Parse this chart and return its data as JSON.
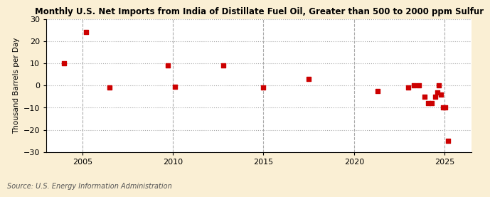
{
  "title": "Monthly U.S. Net Imports from India of Distillate Fuel Oil, Greater than 500 to 2000 ppm Sulfur",
  "ylabel": "Thousand Barrels per Day",
  "source": "Source: U.S. Energy Information Administration",
  "fig_bg_color": "#faefd4",
  "plot_bg_color": "#ffffff",
  "marker_color": "#cc0000",
  "marker_size": 4,
  "xlim": [
    2003.0,
    2026.5
  ],
  "ylim": [
    -30,
    30
  ],
  "yticks": [
    -30,
    -20,
    -10,
    0,
    10,
    20,
    30
  ],
  "xticks": [
    2005,
    2010,
    2015,
    2020,
    2025
  ],
  "data_points": [
    [
      2004.0,
      10
    ],
    [
      2005.2,
      24
    ],
    [
      2006.5,
      -1
    ],
    [
      2009.7,
      9
    ],
    [
      2010.1,
      -0.5
    ],
    [
      2012.8,
      9
    ],
    [
      2015.0,
      -1
    ],
    [
      2017.5,
      3
    ],
    [
      2021.3,
      -2.5
    ],
    [
      2023.0,
      -1
    ],
    [
      2023.3,
      0
    ],
    [
      2023.6,
      0
    ],
    [
      2023.9,
      -5
    ],
    [
      2024.1,
      -8
    ],
    [
      2024.3,
      -8
    ],
    [
      2024.5,
      -5
    ],
    [
      2024.6,
      -3
    ],
    [
      2024.7,
      0
    ],
    [
      2024.8,
      -4
    ],
    [
      2024.9,
      -10
    ],
    [
      2025.05,
      -10
    ],
    [
      2025.2,
      -25
    ]
  ]
}
